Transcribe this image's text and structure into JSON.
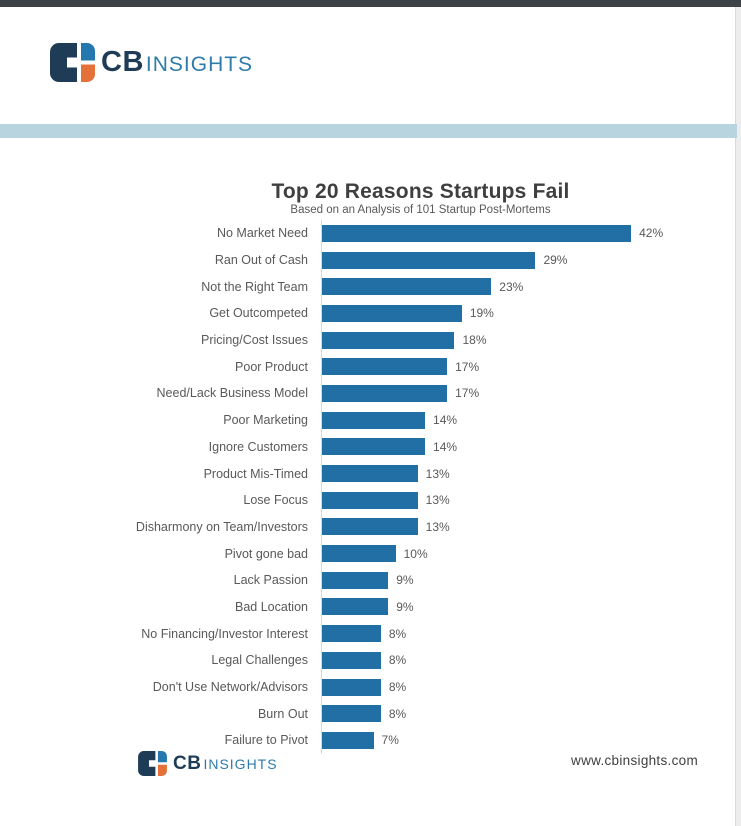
{
  "brand": {
    "cb": "CB",
    "insights": "INSIGHTS",
    "mark_colors": {
      "navy": "#1e3c55",
      "blue": "#2478ad",
      "orange": "#e4703a"
    }
  },
  "chart_data": {
    "type": "bar",
    "orientation": "horizontal",
    "title": "Top 20 Reasons Startups Fail",
    "subtitle": "Based on an Analysis of 101 Startup Post-Mortems",
    "categories": [
      "No Market Need",
      "Ran Out of Cash",
      "Not the Right Team",
      "Get Outcompeted",
      "Pricing/Cost Issues",
      "Poor Product",
      "Need/Lack Business Model",
      "Poor Marketing",
      "Ignore Customers",
      "Product Mis-Timed",
      "Lose Focus",
      "Disharmony on Team/Investors",
      "Pivot gone bad",
      "Lack Passion",
      "Bad Location",
      "No Financing/Investor Interest",
      "Legal Challenges",
      "Don't Use Network/Advisors",
      "Burn Out",
      "Failure to Pivot"
    ],
    "values": [
      42,
      29,
      23,
      19,
      18,
      17,
      17,
      14,
      14,
      13,
      13,
      13,
      10,
      9,
      9,
      8,
      8,
      8,
      8,
      7
    ],
    "unit": "%",
    "xlim": [
      0,
      45
    ],
    "value_labels": "outside-end",
    "grid": false,
    "legend": false,
    "bar_color": "#216fa4",
    "label_color": "#595959"
  },
  "footer": {
    "website": "www.cbinsights.com"
  },
  "colors": {
    "top_bar": "#3d4247",
    "teal_band": "#b8d4de",
    "title": "#3f3f3f",
    "axis_line": "#d9d9d9"
  }
}
